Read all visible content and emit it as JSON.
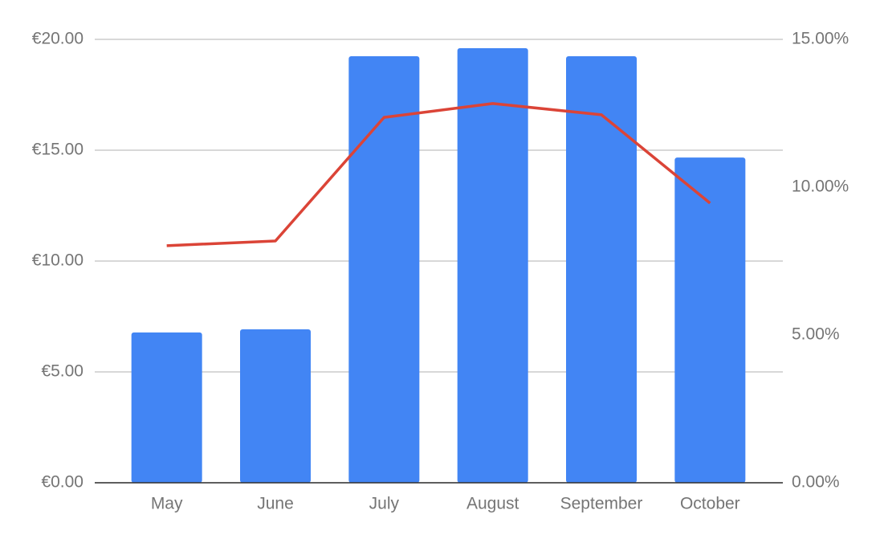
{
  "chart_data": {
    "type": "bar",
    "categories": [
      "May",
      "June",
      "July",
      "August",
      "September",
      "October"
    ],
    "series": [
      {
        "type": "bar",
        "color": "#4285f4",
        "values": [
          6.78,
          6.92,
          19.24,
          19.6,
          19.24,
          14.67
        ]
      },
      {
        "type": "line",
        "axis": "y2",
        "color": "#db4437",
        "values": [
          8.02,
          8.18,
          12.36,
          12.83,
          12.45,
          9.46
        ]
      }
    ],
    "ylim": [
      0,
      20
    ],
    "yticks": [
      {
        "value": 0,
        "label": "€0.00"
      },
      {
        "value": 5,
        "label": "€5.00"
      },
      {
        "value": 10,
        "label": "€10.00"
      },
      {
        "value": 15,
        "label": "€15.00"
      },
      {
        "value": 20,
        "label": "€20.00"
      }
    ],
    "y2lim": [
      0,
      15
    ],
    "y2ticks": [
      {
        "value": 0,
        "label": "0.00%"
      },
      {
        "value": 5,
        "label": "5.00%"
      },
      {
        "value": 10,
        "label": "10.00%"
      },
      {
        "value": 15,
        "label": "15.00%"
      }
    ],
    "grid": true
  }
}
